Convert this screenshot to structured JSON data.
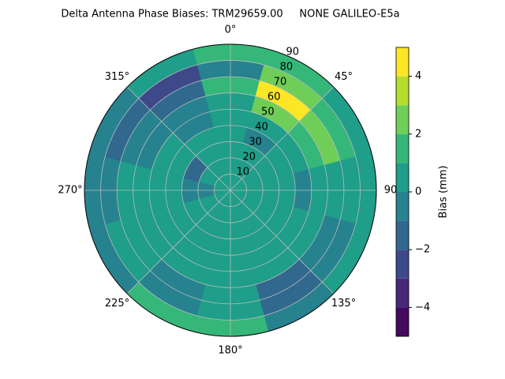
{
  "chart_data": {
    "type": "polar-contour",
    "title": "Delta Antenna Phase Biases: TRM29659.00     NONE GALILEO-E5a",
    "azimuth": [
      0,
      30,
      60,
      90,
      120,
      150,
      180,
      210,
      240,
      270,
      300,
      330
    ],
    "zenith_bins": [
      0,
      10,
      20,
      30,
      40,
      50,
      60,
      70,
      80,
      90
    ],
    "z": [
      [
        0.5,
        0.5,
        0.5,
        0.5,
        0.5,
        0.5,
        0.5,
        0.5,
        0.5,
        0.5,
        0.5,
        0.5
      ],
      [
        0.5,
        0.5,
        0.5,
        0.5,
        0.5,
        0.5,
        0.5,
        0.5,
        0.5,
        -0.5,
        0.5,
        0.5
      ],
      [
        0.5,
        0.5,
        0.5,
        0.5,
        0.5,
        0.5,
        0.5,
        0.5,
        0.5,
        -0.5,
        -1.5,
        0.5
      ],
      [
        0.5,
        -0.5,
        0.5,
        0.5,
        0.5,
        0.5,
        0.5,
        0.5,
        0.5,
        0.5,
        0.5,
        0.5
      ],
      [
        0.5,
        0.5,
        0.5,
        -0.5,
        0.5,
        0.5,
        0.5,
        0.5,
        0.5,
        0.5,
        0.5,
        -0.5
      ],
      [
        0.5,
        2.5,
        1.5,
        0.5,
        0.5,
        0.5,
        0.5,
        0.5,
        0.5,
        0.5,
        -0.5,
        -0.5
      ],
      [
        1.5,
        4.5,
        2.5,
        0.5,
        -0.5,
        -1.5,
        0.5,
        -0.5,
        0.5,
        0.5,
        -0.5,
        -1.5
      ],
      [
        -0.5,
        2.5,
        1.5,
        0.5,
        -0.5,
        -1.5,
        0.5,
        -0.5,
        0.5,
        -0.5,
        -1.5,
        -2.5
      ],
      [
        1.5,
        1.5,
        0.5,
        0.5,
        0.5,
        -0.5,
        1.5,
        1.5,
        -0.5,
        -0.5,
        -0.5,
        0.5
      ]
    ],
    "levels": [
      -5,
      -4,
      -3,
      -2,
      -1,
      0,
      1,
      2,
      3,
      4,
      5
    ],
    "colors": [
      "#45095d",
      "#482878",
      "#3e4989",
      "#31688e",
      "#26828e",
      "#1f9e89",
      "#35b779",
      "#6ece58",
      "#b5de2b",
      "#fde725"
    ],
    "theta_ticks": [
      {
        "value": 0,
        "label": "0°"
      },
      {
        "value": 45,
        "label": "45°"
      },
      {
        "value": 90,
        "label": "90"
      },
      {
        "value": 135,
        "label": "135°"
      },
      {
        "value": 180,
        "label": "180°"
      },
      {
        "value": 225,
        "label": "225°"
      },
      {
        "value": 270,
        "label": "270°"
      },
      {
        "value": 315,
        "label": "315°"
      }
    ],
    "rlim": [
      0,
      90
    ],
    "rticks": [
      10,
      20,
      30,
      40,
      50,
      60,
      70,
      80,
      90
    ],
    "grid": true,
    "colorbar_label": "Bias (mm)",
    "clim": [
      -5,
      5
    ],
    "cticks": [
      {
        "value": -4,
        "label": "−4"
      },
      {
        "value": -2,
        "label": "−2"
      },
      0,
      2,
      4
    ]
  }
}
